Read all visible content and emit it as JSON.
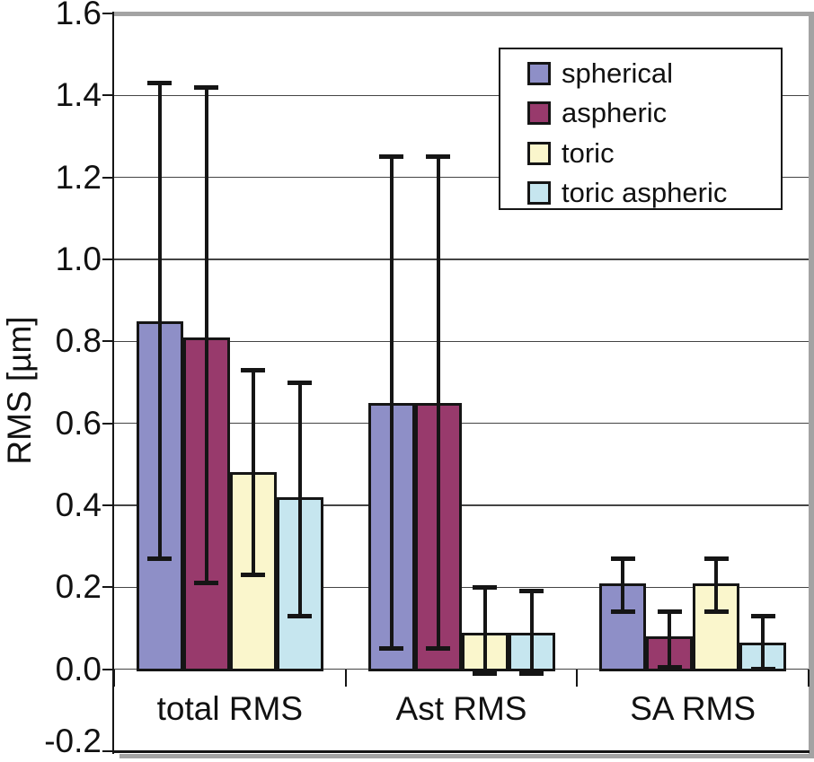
{
  "colors": {
    "background": "#ffffff",
    "text": "#111111",
    "grid": "#444444",
    "axis": "#151515",
    "frame_shadow": "#a3a3a3",
    "legend_border": "#151515"
  },
  "chart_data": {
    "type": "bar",
    "title": "",
    "xlabel": "",
    "ylabel": "RMS [µm]",
    "ylim": [
      -0.2,
      1.6
    ],
    "ytick_step": 0.2,
    "ytick_labels": [
      "-0.2",
      "0.0",
      "0.2",
      "0.4",
      "0.6",
      "0.8",
      "1.0",
      "1.2",
      "1.4",
      "1.6"
    ],
    "grid": true,
    "error_bars": true,
    "legend_position": "top-right",
    "categories": [
      "total RMS",
      "Ast RMS",
      "SA RMS"
    ],
    "series": [
      {
        "name": "spherical",
        "color": "#8e8fc7",
        "values": [
          0.85,
          0.65,
          0.21
        ],
        "err_low": [
          0.27,
          0.05,
          0.14
        ],
        "err_high": [
          1.43,
          1.25,
          0.27
        ]
      },
      {
        "name": "aspheric",
        "color": "#983a6c",
        "values": [
          0.81,
          0.65,
          0.08
        ],
        "err_low": [
          0.21,
          0.05,
          0.005
        ],
        "err_high": [
          1.42,
          1.25,
          0.14
        ]
      },
      {
        "name": "toric",
        "color": "#faf6cc",
        "values": [
          0.48,
          0.09,
          0.21
        ],
        "err_low": [
          0.23,
          -0.01,
          0.14
        ],
        "err_high": [
          0.73,
          0.2,
          0.27
        ]
      },
      {
        "name": "toric aspheric",
        "color": "#c6e6ef",
        "values": [
          0.42,
          0.09,
          0.065
        ],
        "err_low": [
          0.13,
          -0.01,
          0.0
        ],
        "err_high": [
          0.7,
          0.19,
          0.13
        ]
      }
    ]
  }
}
